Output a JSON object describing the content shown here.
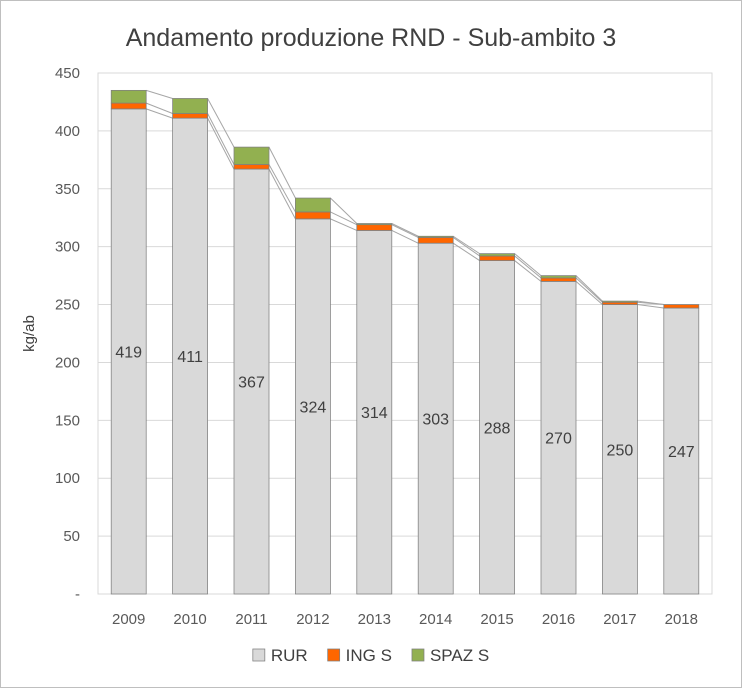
{
  "chart_data": {
    "type": "bar",
    "stacked": true,
    "title": "Andamento produzione RND - Sub-ambito 3",
    "xlabel": "",
    "ylabel": "kg/ab",
    "ylim": [
      0,
      450
    ],
    "yticks": [
      {
        "value": 450,
        "label": "450"
      },
      {
        "value": 400,
        "label": "400"
      },
      {
        "value": 350,
        "label": "350"
      },
      {
        "value": 300,
        "label": "300"
      },
      {
        "value": 250,
        "label": "250"
      },
      {
        "value": 200,
        "label": "200"
      },
      {
        "value": 150,
        "label": "150"
      },
      {
        "value": 100,
        "label": "100"
      },
      {
        "value": 50,
        "label": "50"
      },
      {
        "value": 0,
        "label": "-"
      }
    ],
    "grid": true,
    "legend_position": "bottom",
    "categories": [
      "2009",
      "2010",
      "2011",
      "2012",
      "2013",
      "2014",
      "2015",
      "2016",
      "2017",
      "2018"
    ],
    "series": [
      {
        "name": "RUR",
        "color": "#d9d9d9",
        "values": [
          419,
          411,
          367,
          324,
          314,
          303,
          288,
          270,
          250,
          247
        ],
        "show_labels": true
      },
      {
        "name": "ING S",
        "color": "#ff6600",
        "values": [
          5,
          4,
          4,
          6,
          5,
          5,
          4,
          3,
          2,
          3
        ],
        "show_labels": false
      },
      {
        "name": "SPAZ S",
        "color": "#92b050",
        "values": [
          11,
          13,
          15,
          12,
          1,
          1,
          2,
          2,
          1,
          0
        ],
        "show_labels": false
      }
    ]
  }
}
